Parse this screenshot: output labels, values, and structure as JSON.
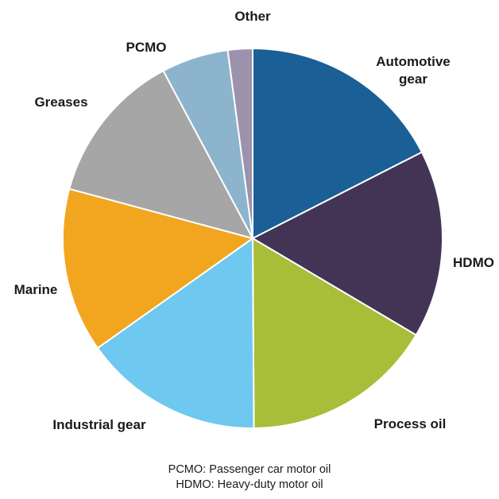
{
  "chart_data": {
    "type": "pie",
    "start_angle_deg": 0,
    "direction": "clockwise",
    "slices": [
      {
        "label": "Automotive gear",
        "label_lines": [
          "Automotive",
          "gear"
        ],
        "value": 17.5,
        "color": "#1a5f96"
      },
      {
        "label": "HDMO",
        "label_lines": [
          "HDMO"
        ],
        "value": 16.0,
        "color": "#433456"
      },
      {
        "label": "Process oil",
        "label_lines": [
          "Process oil"
        ],
        "value": 16.4,
        "color": "#a8bd38"
      },
      {
        "label": "Industrial gear",
        "label_lines": [
          "Industrial gear"
        ],
        "value": 15.3,
        "color": "#6ec8f0"
      },
      {
        "label": "Marine",
        "label_lines": [
          "Marine"
        ],
        "value": 14.0,
        "color": "#f2a51f"
      },
      {
        "label": "Greases",
        "label_lines": [
          "Greases"
        ],
        "value": 13.0,
        "color": "#a6a6a6"
      },
      {
        "label": "PCMO",
        "label_lines": [
          "PCMO"
        ],
        "value": 5.7,
        "color": "#8db4cd"
      },
      {
        "label": "Other",
        "label_lines": [
          "Other"
        ],
        "value": 2.1,
        "color": "#9c92ac"
      }
    ]
  },
  "footnotes": [
    "PCMO: Passenger car motor oil",
    "HDMO: Heavy-duty motor oil"
  ]
}
